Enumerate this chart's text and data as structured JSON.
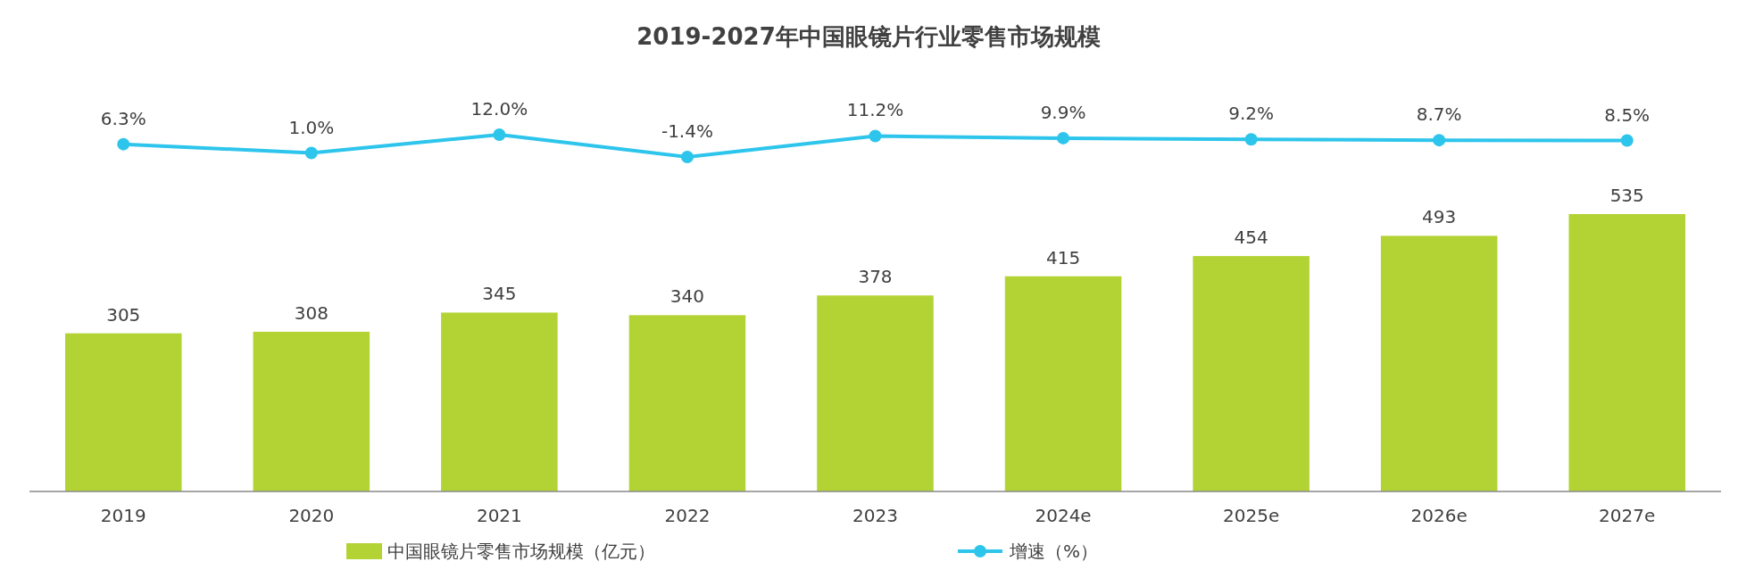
{
  "chart_data": [
    {
      "type": "line",
      "title": "2019-2027年中国眼镜片行业零售市场规模",
      "categories": [
        null,
        null,
        null,
        null,
        null,
        null,
        null,
        null,
        null
      ],
      "series": [
        {
          "name": "增速（%）",
          "color": "#2ec5ec",
          "values": [
            6.3,
            1.0,
            12.0,
            -1.4,
            11.2,
            9.9,
            9.2,
            8.7,
            8.5
          ],
          "value_labels": [
            "6.3%",
            "1.0%",
            "12.0%",
            "-1.4%",
            "11.2%",
            "9.9%",
            "9.2%",
            "8.7%",
            "8.5%"
          ]
        }
      ],
      "data_labels": true,
      "legend": "bottom",
      "marker": "circle",
      "line_style": "solid"
    },
    {
      "type": "bar",
      "categories": [
        "2019",
        "2020",
        "2021",
        "2022",
        "2023",
        "2024e",
        "2025e",
        "2026e",
        "2027e"
      ],
      "series": [
        {
          "name": "中国眼镜片零售市场规模（亿元）",
          "color": "#b3d335",
          "values": [
            305,
            308,
            345,
            340,
            378,
            415,
            454,
            493,
            535
          ]
        }
      ],
      "tick_labels": "x",
      "data_labels": true,
      "legend": "bottom"
    }
  ]
}
